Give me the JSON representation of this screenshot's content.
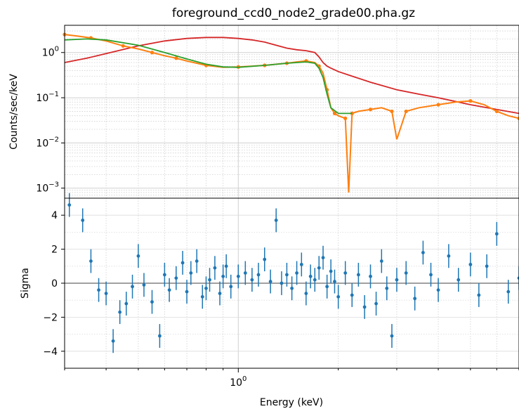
{
  "chart_data": [
    {
      "type": "line",
      "title": "foreground_ccd0_node2_grade00.pha.gz",
      "xlabel": "",
      "ylabel": "Counts/sec/keV",
      "xscale": "log",
      "yscale": "log",
      "xlim": [
        0.3,
        7.0
      ],
      "ylim": [
        0.0006,
        4.0
      ],
      "grid": "on (major and minor, dotted)",
      "yticks": [
        {
          "value": 1,
          "label": "10^0"
        },
        {
          "value": 0.1,
          "label": "10^-1"
        },
        {
          "value": 0.01,
          "label": "10^-2"
        },
        {
          "value": 0.001,
          "label": "10^-3"
        }
      ],
      "colors": {
        "model_red": "#d62728",
        "data_orange": "#ff7f0e",
        "fit_green": "#2ca02c"
      },
      "series": [
        {
          "role": "red curve",
          "color": "#d62728",
          "x": [
            0.3,
            0.35,
            0.4,
            0.5,
            0.6,
            0.7,
            0.8,
            0.9,
            1.0,
            1.1,
            1.2,
            1.3,
            1.4,
            1.5,
            1.6,
            1.7,
            1.75,
            1.8,
            1.85,
            1.9,
            2.0,
            2.2,
            2.5,
            3.0,
            3.5,
            4.0,
            5.0,
            6.0,
            7.0
          ],
          "y": [
            0.6,
            0.75,
            0.95,
            1.4,
            1.8,
            2.05,
            2.15,
            2.15,
            2.05,
            1.9,
            1.7,
            1.45,
            1.25,
            1.15,
            1.1,
            1.0,
            0.8,
            0.6,
            0.5,
            0.45,
            0.38,
            0.3,
            0.22,
            0.15,
            0.12,
            0.1,
            0.07,
            0.055,
            0.045
          ]
        },
        {
          "role": "orange data",
          "color": "#ff7f0e",
          "x": [
            0.3,
            0.33,
            0.36,
            0.4,
            0.45,
            0.5,
            0.55,
            0.6,
            0.65,
            0.7,
            0.8,
            0.9,
            1.0,
            1.1,
            1.2,
            1.3,
            1.4,
            1.5,
            1.6,
            1.7,
            1.75,
            1.8,
            1.85,
            1.9,
            1.95,
            2.0,
            2.1,
            2.15,
            2.2,
            2.3,
            2.5,
            2.7,
            2.9,
            3.0,
            3.2,
            3.5,
            4.0,
            4.5,
            5.0,
            5.5,
            6.0,
            6.5,
            7.0
          ],
          "y": [
            2.5,
            2.3,
            2.1,
            1.8,
            1.4,
            1.2,
            1.0,
            0.85,
            0.75,
            0.65,
            0.52,
            0.47,
            0.48,
            0.5,
            0.52,
            0.55,
            0.58,
            0.62,
            0.65,
            0.6,
            0.5,
            0.35,
            0.15,
            0.06,
            0.045,
            0.04,
            0.035,
            0.0008,
            0.045,
            0.05,
            0.055,
            0.06,
            0.05,
            0.012,
            0.05,
            0.06,
            0.07,
            0.08,
            0.085,
            0.07,
            0.05,
            0.04,
            0.035
          ]
        },
        {
          "role": "green curve",
          "color": "#2ca02c",
          "x": [
            0.3,
            0.35,
            0.4,
            0.5,
            0.6,
            0.7,
            0.8,
            0.9,
            1.0,
            1.2,
            1.4,
            1.6,
            1.7,
            1.75,
            1.8,
            1.85,
            1.9,
            2.0,
            2.2
          ],
          "y": [
            1.9,
            2.0,
            1.9,
            1.45,
            1.0,
            0.72,
            0.55,
            0.48,
            0.47,
            0.52,
            0.58,
            0.62,
            0.58,
            0.45,
            0.28,
            0.12,
            0.06,
            0.045,
            0.045
          ]
        }
      ]
    },
    {
      "type": "scatter",
      "title": "",
      "xlabel": "Energy (keV)",
      "ylabel": "Sigma",
      "xscale": "log",
      "xlim": [
        0.3,
        7.0
      ],
      "ylim": [
        -5.0,
        5.0
      ],
      "grid": "on (major and minor, dotted)",
      "xticks": [
        {
          "value": 1,
          "label": "10^0"
        }
      ],
      "yticks": [
        {
          "value": 4,
          "label": "4"
        },
        {
          "value": 2,
          "label": "2"
        },
        {
          "value": 0,
          "label": "0"
        },
        {
          "value": -2,
          "label": "−2"
        },
        {
          "value": -4,
          "label": "−4"
        }
      ],
      "zero_line": 0,
      "colors": {
        "residual_blue": "#1f77b4",
        "zero_line": "#808080"
      },
      "series": [
        {
          "role": "residuals",
          "color": "#1f77b4",
          "x": [
            0.31,
            0.34,
            0.36,
            0.38,
            0.4,
            0.42,
            0.44,
            0.46,
            0.48,
            0.5,
            0.52,
            0.55,
            0.58,
            0.6,
            0.62,
            0.65,
            0.68,
            0.7,
            0.72,
            0.75,
            0.78,
            0.8,
            0.82,
            0.85,
            0.88,
            0.9,
            0.92,
            0.95,
            1.0,
            1.05,
            1.1,
            1.15,
            1.2,
            1.25,
            1.3,
            1.35,
            1.4,
            1.45,
            1.5,
            1.55,
            1.6,
            1.65,
            1.7,
            1.75,
            1.8,
            1.85,
            1.9,
            1.95,
            2.0,
            2.1,
            2.2,
            2.3,
            2.4,
            2.5,
            2.6,
            2.7,
            2.8,
            2.9,
            3.0,
            3.2,
            3.4,
            3.6,
            3.8,
            4.0,
            4.3,
            4.6,
            5.0,
            5.3,
            5.6,
            6.0,
            6.5,
            7.0
          ],
          "y": [
            4.6,
            3.7,
            1.3,
            -0.4,
            -0.6,
            -3.4,
            -1.7,
            -1.2,
            -0.2,
            1.6,
            -0.1,
            -1.1,
            -3.1,
            0.5,
            -0.4,
            0.3,
            1.2,
            -0.5,
            0.6,
            1.3,
            -0.8,
            -0.3,
            0.2,
            0.9,
            -0.6,
            0.4,
            1.0,
            -0.2,
            0.4,
            0.6,
            0.2,
            0.5,
            1.4,
            0.1,
            3.7,
            0.0,
            0.5,
            -0.3,
            0.6,
            1.1,
            -0.6,
            0.4,
            0.2,
            0.9,
            1.5,
            -0.2,
            0.7,
            0.1,
            -0.8,
            0.6,
            -0.7,
            0.5,
            -1.4,
            0.4,
            -1.2,
            1.3,
            -0.3,
            -3.1,
            0.2,
            0.6,
            -0.9,
            1.8,
            0.5,
            -0.4,
            1.6,
            0.2,
            1.1,
            -0.7,
            1.0,
            2.9,
            -0.5,
            0.3
          ],
          "yerr": 0.7
        }
      ]
    }
  ]
}
